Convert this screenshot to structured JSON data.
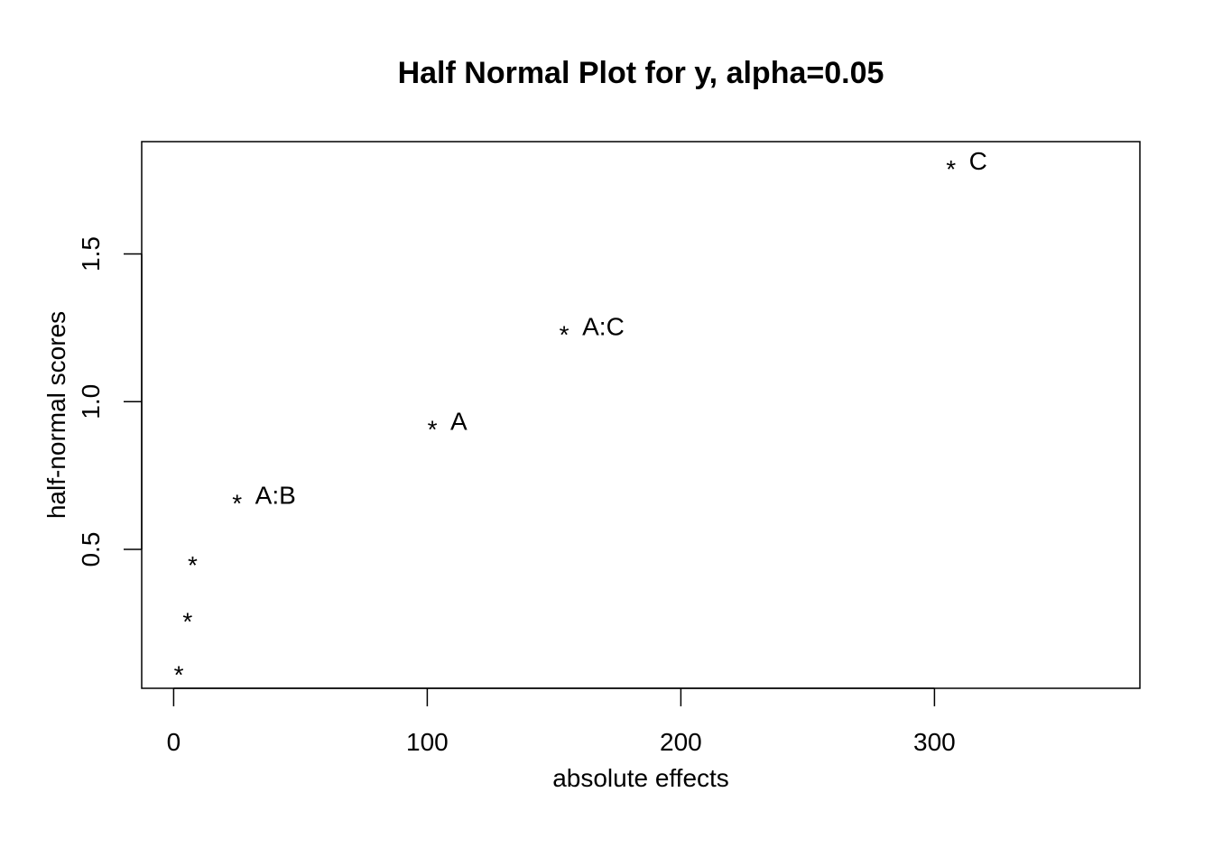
{
  "chart_data": {
    "type": "scatter",
    "title": "Half Normal Plot for y, alpha=0.05",
    "xlabel": "absolute effects",
    "ylabel": "half-normal scores",
    "xlim": [
      -12.6,
      381
    ],
    "ylim": [
      0.03,
      1.88
    ],
    "xticks": [
      0,
      100,
      200,
      300
    ],
    "yticks": [
      0.5,
      1.0,
      1.5
    ],
    "ytick_labels": [
      "0.5",
      "1.0",
      "1.5"
    ],
    "xtick_labels": [
      "0",
      "100",
      "200",
      "300"
    ],
    "marker": "*",
    "grid": false,
    "points": [
      {
        "x": 2.0,
        "y": 0.09,
        "label": ""
      },
      {
        "x": 5.5,
        "y": 0.27,
        "label": ""
      },
      {
        "x": 7.5,
        "y": 0.46,
        "label": ""
      },
      {
        "x": 25.0,
        "y": 0.67,
        "label": "A:B"
      },
      {
        "x": 102.0,
        "y": 0.92,
        "label": "A"
      },
      {
        "x": 154.0,
        "y": 1.24,
        "label": "A:C"
      },
      {
        "x": 306.5,
        "y": 1.8,
        "label": "C"
      }
    ]
  }
}
